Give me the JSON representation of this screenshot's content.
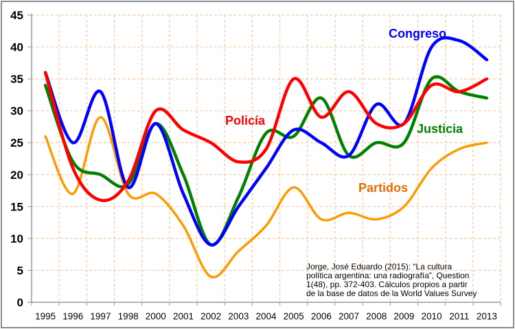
{
  "chart_data": {
    "type": "line",
    "title": "",
    "xlabel": "",
    "ylabel": "",
    "categories": [
      "1995",
      "1996",
      "1997",
      "1998",
      "2000",
      "2001",
      "2002",
      "2003",
      "2004",
      "2005",
      "2006",
      "2007",
      "2008",
      "2009",
      "2010",
      "2011",
      "2013"
    ],
    "ylim": [
      0,
      45
    ],
    "yticks": [
      0,
      5,
      10,
      15,
      20,
      25,
      30,
      35,
      40,
      45
    ],
    "grid": true,
    "series": [
      {
        "name": "Partidos",
        "color": "#ff9900",
        "label_color": "#e46c0a",
        "values": [
          26,
          17,
          29,
          17,
          17,
          12,
          4,
          8,
          12,
          18,
          13,
          14,
          13,
          15,
          21,
          24,
          25
        ]
      },
      {
        "name": "Justicia",
        "color": "#008000",
        "label_color": "#008000",
        "values": [
          34,
          22,
          20,
          18.5,
          28,
          20,
          9,
          16.5,
          26.5,
          26,
          32,
          23,
          25,
          25,
          35,
          33,
          32
        ]
      },
      {
        "name": "Congreso",
        "color": "#0000ff",
        "label_color": "#0000ff",
        "values": [
          36,
          25,
          33,
          18,
          28,
          17,
          9,
          15,
          21,
          27,
          25,
          23,
          31,
          28,
          40,
          41,
          38
        ]
      },
      {
        "name": "Policía",
        "color": "#ff0000",
        "label_color": "#ff0000",
        "values": [
          36,
          21,
          16,
          19,
          30,
          27,
          25,
          22,
          24,
          35,
          29,
          33,
          28,
          28,
          34,
          33,
          35
        ]
      }
    ],
    "annotation": "Jorge, José Eduardo (2015): “La cultura política argentina: una radiografía”, Question 1(48), pp. 372-403. Cálculos propios a partir de la base de datos de la World Values Survey"
  },
  "source_note": {
    "lines": [
      "Jorge, José Eduardo (2015): “La cultura",
      "política argentina: una radiografía”, Question",
      "1(48), pp. 372-403. Cálculos propios a partir",
      "de la base de datos de la World Values Survey"
    ]
  }
}
